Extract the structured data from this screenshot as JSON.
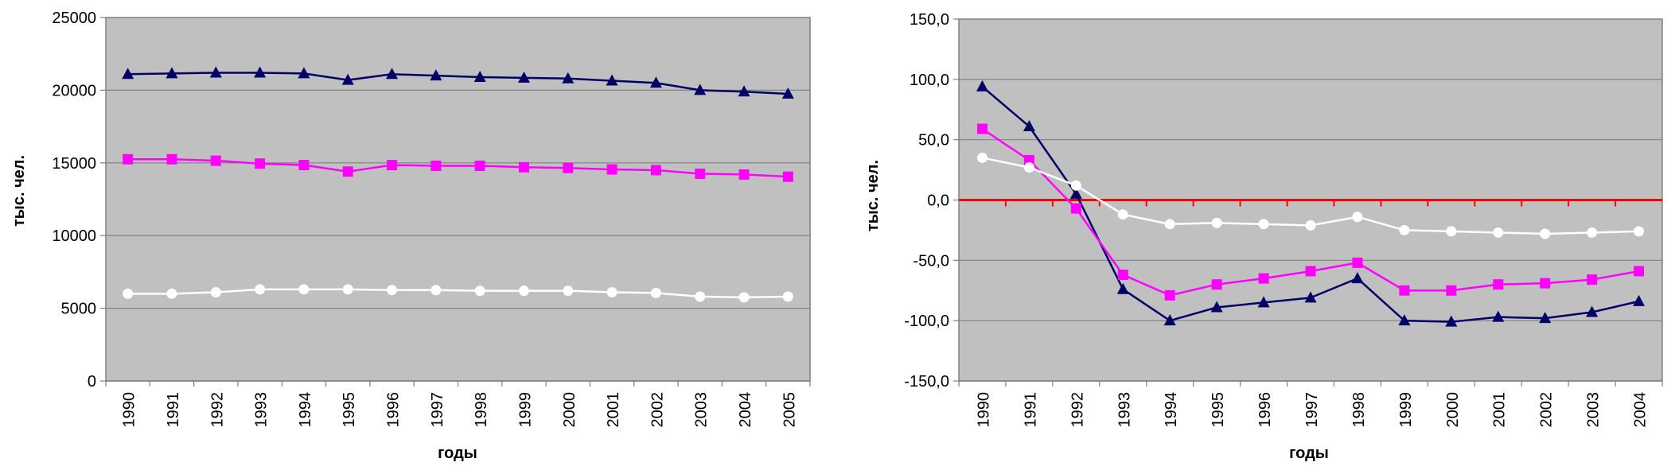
{
  "colors": {
    "plot_background": "#c0c0c0",
    "gridline": "#808080",
    "axis": "#808080",
    "zero_line": "#ff0000",
    "series_triangle": "#000066",
    "series_square": "#ff00ff",
    "series_circle": "#ffffff"
  },
  "chart_data": [
    {
      "type": "line",
      "xlabel": "годы",
      "ylabel": "тыс. чел.",
      "ylim": [
        0,
        25000
      ],
      "grid": true,
      "legend": "none",
      "y_tick_labels": [
        "0",
        "5000",
        "10000",
        "15000",
        "20000",
        "25000"
      ],
      "categories": [
        "1990",
        "1991",
        "1992",
        "1993",
        "1994",
        "1995",
        "1996",
        "1997",
        "1998",
        "1999",
        "2000",
        "2001",
        "2002",
        "2003",
        "2004",
        "2005"
      ],
      "series": [
        {
          "marker": "triangle",
          "color": "#000066",
          "values": [
            21100,
            21150,
            21200,
            21200,
            21150,
            20700,
            21100,
            21000,
            20900,
            20850,
            20800,
            20650,
            20500,
            20000,
            19900,
            19750
          ]
        },
        {
          "marker": "square",
          "color": "#ff00ff",
          "values": [
            15250,
            15250,
            15150,
            14950,
            14850,
            14400,
            14850,
            14800,
            14800,
            14700,
            14650,
            14550,
            14500,
            14250,
            14200,
            14050
          ]
        },
        {
          "marker": "circle",
          "color": "#ffffff",
          "values": [
            6000,
            6000,
            6100,
            6300,
            6300,
            6300,
            6250,
            6250,
            6200,
            6200,
            6200,
            6100,
            6050,
            5800,
            5750,
            5800
          ]
        }
      ]
    },
    {
      "type": "line",
      "xlabel": "годы",
      "ylabel": "тыс. чел.",
      "ylim": [
        -150,
        150
      ],
      "grid": true,
      "legend": "none",
      "zero_line": "red",
      "y_tick_labels": [
        "-150,0",
        "-100,0",
        "-50,0",
        "0,0",
        "50,0",
        "100,0",
        "150,0"
      ],
      "categories": [
        "1990",
        "1991",
        "1992",
        "1993",
        "1994",
        "1995",
        "1996",
        "1997",
        "1998",
        "1999",
        "2000",
        "2001",
        "2002",
        "2003",
        "2004"
      ],
      "series": [
        {
          "marker": "triangle",
          "color": "#000066",
          "values": [
            94,
            61,
            5,
            -74,
            -100,
            -89,
            -85,
            -81,
            -65,
            -100,
            -101,
            -97,
            -98,
            -93,
            -84
          ]
        },
        {
          "marker": "square",
          "color": "#ff00ff",
          "values": [
            59,
            33,
            -7,
            -62,
            -79,
            -70,
            -65,
            -59,
            -52,
            -75,
            -75,
            -70,
            -69,
            -66,
            -59
          ]
        },
        {
          "marker": "circle",
          "color": "#ffffff",
          "values": [
            35,
            27,
            12,
            -12,
            -20,
            -19,
            -20,
            -21,
            -14,
            -25,
            -26,
            -27,
            -28,
            -27,
            -26
          ]
        }
      ]
    }
  ]
}
